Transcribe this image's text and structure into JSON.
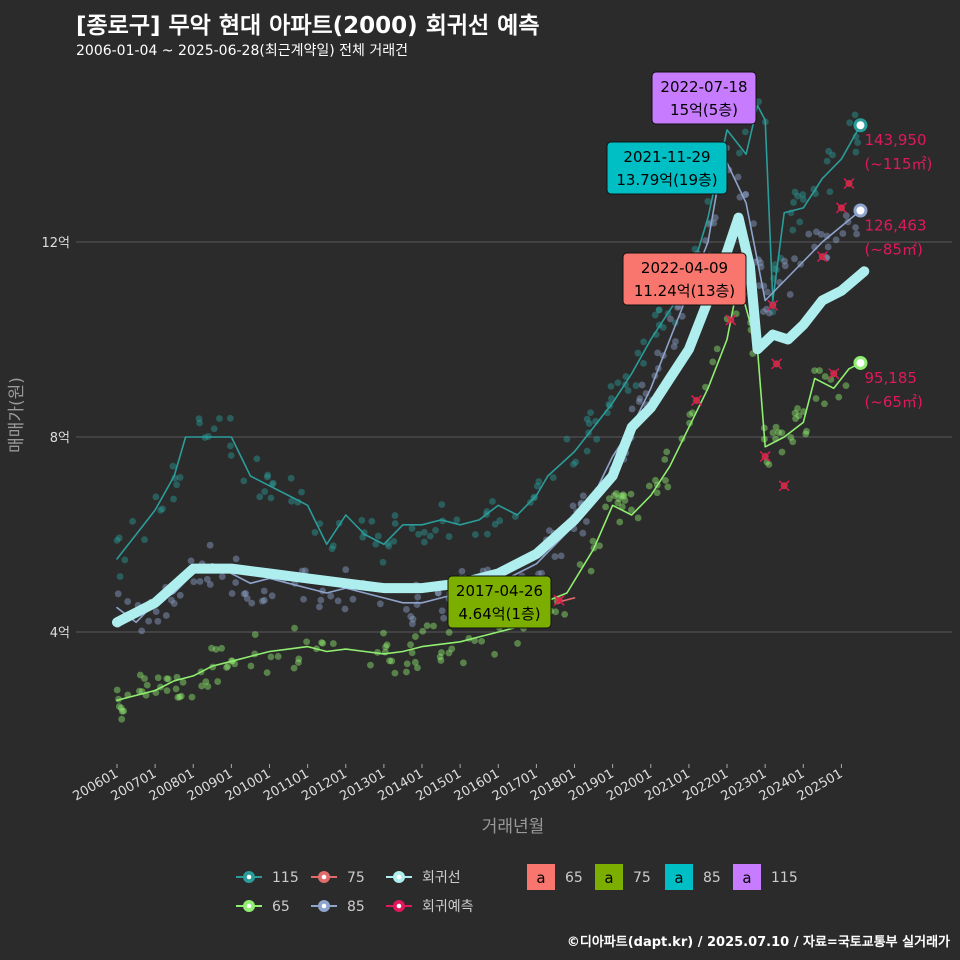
{
  "title": "[종로구] 무악 현대 아파트(2000) 회귀선 예측",
  "subtitle": "2006-01-04 ~ 2025-06-28(최근계약일) 전체 거래건",
  "footer": "©디아파트(dapt.kr) / 2025.07.10 / 자료=국토교통부 실거래가",
  "chart_data": {
    "type": "line",
    "xlabel": "거래년월",
    "ylabel": "매매가(원)",
    "x_ticks": [
      "200601",
      "200701",
      "200801",
      "200901",
      "201001",
      "201101",
      "201201",
      "201301",
      "201401",
      "201501",
      "201601",
      "201701",
      "201801",
      "201901",
      "202001",
      "202101",
      "202201",
      "202301",
      "202401",
      "202501"
    ],
    "y_ticks": [
      {
        "value": 40000,
        "label": "4억"
      },
      {
        "value": 80000,
        "label": "8억"
      },
      {
        "value": 120000,
        "label": "12억"
      }
    ],
    "xlim": [
      2005.5,
      2026.0
    ],
    "ylim": [
      15000,
      160000
    ],
    "grid": true,
    "legend_position": "bottom",
    "colors": {
      "115": "#2a9d9a",
      "85": "#8fa4cc",
      "75": "#e06c6c",
      "65": "#90ee70",
      "trend": "#aeeeee",
      "forecast": "#e0195a"
    },
    "series": [
      {
        "name": "115",
        "values": [
          [
            2006.0,
            55000
          ],
          [
            2006.5,
            60000
          ],
          [
            2007.0,
            65000
          ],
          [
            2007.5,
            72000
          ],
          [
            2007.8,
            80000
          ],
          [
            2008.3,
            80000
          ],
          [
            2009.0,
            80000
          ],
          [
            2009.5,
            72000
          ],
          [
            2010.0,
            70000
          ],
          [
            2010.5,
            68000
          ],
          [
            2011.0,
            66000
          ],
          [
            2011.5,
            58000
          ],
          [
            2012.0,
            64000
          ],
          [
            2012.5,
            60000
          ],
          [
            2013.0,
            58000
          ],
          [
            2013.5,
            62000
          ],
          [
            2014.0,
            62000
          ],
          [
            2014.5,
            63000
          ],
          [
            2015.0,
            62000
          ],
          [
            2015.5,
            63000
          ],
          [
            2016.0,
            66000
          ],
          [
            2016.5,
            64000
          ],
          [
            2017.0,
            68000
          ],
          [
            2017.3,
            72000
          ],
          [
            2018.0,
            77000
          ],
          [
            2018.5,
            82000
          ],
          [
            2019.0,
            87000
          ],
          [
            2019.5,
            93000
          ],
          [
            2020.0,
            100000
          ],
          [
            2020.5,
            106000
          ],
          [
            2021.0,
            112000
          ],
          [
            2021.5,
            125000
          ],
          [
            2022.0,
            143000
          ],
          [
            2022.5,
            138000
          ],
          [
            2022.8,
            148000
          ],
          [
            2023.0,
            145000
          ],
          [
            2023.2,
            108000
          ],
          [
            2023.5,
            126000
          ],
          [
            2024.0,
            127000
          ],
          [
            2024.5,
            133000
          ],
          [
            2025.0,
            137000
          ],
          [
            2025.5,
            143950
          ]
        ]
      },
      {
        "name": "85",
        "values": [
          [
            2006.0,
            45000
          ],
          [
            2006.5,
            42000
          ],
          [
            2007.0,
            46000
          ],
          [
            2007.5,
            48000
          ],
          [
            2008.0,
            52000
          ],
          [
            2008.5,
            54000
          ],
          [
            2009.0,
            52000
          ],
          [
            2009.5,
            50000
          ],
          [
            2010.0,
            51000
          ],
          [
            2010.5,
            50000
          ],
          [
            2011.0,
            49000
          ],
          [
            2011.5,
            48000
          ],
          [
            2012.0,
            49000
          ],
          [
            2012.5,
            48000
          ],
          [
            2013.0,
            47000
          ],
          [
            2013.5,
            46000
          ],
          [
            2014.0,
            46000
          ],
          [
            2014.5,
            47000
          ],
          [
            2015.0,
            48000
          ],
          [
            2015.5,
            49000
          ],
          [
            2016.0,
            50000
          ],
          [
            2016.5,
            52000
          ],
          [
            2017.0,
            54000
          ],
          [
            2017.5,
            58000
          ],
          [
            2018.0,
            62000
          ],
          [
            2018.5,
            68000
          ],
          [
            2019.0,
            76000
          ],
          [
            2019.5,
            82000
          ],
          [
            2020.0,
            90000
          ],
          [
            2020.5,
            100000
          ],
          [
            2021.0,
            110000
          ],
          [
            2021.5,
            120000
          ],
          [
            2021.9,
            137900
          ],
          [
            2022.5,
            128000
          ],
          [
            2023.0,
            108000
          ],
          [
            2023.5,
            112000
          ],
          [
            2024.0,
            116000
          ],
          [
            2024.5,
            120000
          ],
          [
            2025.5,
            126463
          ]
        ]
      },
      {
        "name": "75",
        "values": [
          [
            2017.5,
            46000
          ],
          [
            2018.0,
            47000
          ]
        ]
      },
      {
        "name": "65",
        "values": [
          [
            2006.0,
            26000
          ],
          [
            2006.5,
            27000
          ],
          [
            2007.0,
            28000
          ],
          [
            2007.5,
            30000
          ],
          [
            2008.0,
            31000
          ],
          [
            2008.5,
            33000
          ],
          [
            2009.0,
            34000
          ],
          [
            2009.5,
            35000
          ],
          [
            2010.0,
            36000
          ],
          [
            2010.5,
            36500
          ],
          [
            2011.0,
            37000
          ],
          [
            2011.5,
            36000
          ],
          [
            2012.0,
            36500
          ],
          [
            2012.5,
            36000
          ],
          [
            2013.0,
            35500
          ],
          [
            2013.5,
            36000
          ],
          [
            2014.0,
            37000
          ],
          [
            2014.5,
            37500
          ],
          [
            2015.0,
            38000
          ],
          [
            2015.5,
            39000
          ],
          [
            2016.0,
            40000
          ],
          [
            2016.5,
            41000
          ],
          [
            2017.0,
            43000
          ],
          [
            2017.3,
            46400
          ],
          [
            2017.8,
            48000
          ],
          [
            2018.5,
            57000
          ],
          [
            2019.0,
            66000
          ],
          [
            2019.5,
            64000
          ],
          [
            2020.0,
            68000
          ],
          [
            2020.5,
            74000
          ],
          [
            2021.0,
            82000
          ],
          [
            2021.5,
            90000
          ],
          [
            2022.0,
            100000
          ],
          [
            2022.3,
            112000
          ],
          [
            2022.8,
            98000
          ],
          [
            2023.0,
            78000
          ],
          [
            2023.5,
            80000
          ],
          [
            2024.0,
            83000
          ],
          [
            2024.3,
            92000
          ],
          [
            2024.8,
            90000
          ],
          [
            2025.2,
            94000
          ],
          [
            2025.5,
            95185
          ]
        ]
      },
      {
        "name": "회귀선",
        "values": [
          [
            2006.0,
            42000
          ],
          [
            2007.0,
            46000
          ],
          [
            2008.0,
            53000
          ],
          [
            2009.0,
            53000
          ],
          [
            2010.0,
            52000
          ],
          [
            2011.0,
            51000
          ],
          [
            2012.0,
            50000
          ],
          [
            2013.0,
            49000
          ],
          [
            2014.0,
            49000
          ],
          [
            2015.0,
            50000
          ],
          [
            2016.0,
            52000
          ],
          [
            2017.0,
            56000
          ],
          [
            2018.0,
            63000
          ],
          [
            2019.0,
            72000
          ],
          [
            2019.5,
            82000
          ],
          [
            2020.0,
            86000
          ],
          [
            2020.5,
            92000
          ],
          [
            2021.0,
            98000
          ],
          [
            2021.5,
            108000
          ],
          [
            2022.0,
            118000
          ],
          [
            2022.3,
            125000
          ],
          [
            2022.6,
            115000
          ],
          [
            2022.8,
            98000
          ],
          [
            2023.2,
            101000
          ],
          [
            2023.6,
            100000
          ],
          [
            2024.0,
            103000
          ],
          [
            2024.5,
            108000
          ],
          [
            2025.0,
            110000
          ],
          [
            2025.6,
            114000
          ]
        ]
      }
    ],
    "forecast_points": [
      [
        2017.6,
        46500
      ],
      [
        2021.2,
        87500
      ],
      [
        2022.1,
        104000
      ],
      [
        2023.0,
        76000
      ],
      [
        2023.3,
        95000
      ],
      [
        2023.5,
        70000
      ],
      [
        2023.2,
        107000
      ],
      [
        2024.5,
        117000
      ],
      [
        2025.0,
        127000
      ],
      [
        2024.8,
        93000
      ],
      [
        2025.2,
        132000
      ]
    ],
    "end_labels": [
      {
        "value": "143,950",
        "sub": "(~115㎡)"
      },
      {
        "value": "126,463",
        "sub": "(~85㎡)"
      },
      {
        "value": "95,185",
        "sub": "(~65㎡)"
      }
    ],
    "annotations": [
      {
        "date": "2022-07-18",
        "price": "15억(5층)",
        "group": "115",
        "x": 2022.54,
        "y": 150000
      },
      {
        "date": "2021-11-29",
        "price": "13.79억(19층)",
        "group": "85",
        "x": 2021.9,
        "y": 137900
      },
      {
        "date": "2022-04-09",
        "price": "11.24억(13층)",
        "group": "75",
        "x": 2022.27,
        "y": 112400
      },
      {
        "date": "2017-04-26",
        "price": "4.64억(1층)",
        "group": "65",
        "x": 2017.32,
        "y": 46400
      }
    ],
    "legend": {
      "lines": [
        "115",
        "75",
        "회귀선",
        "65",
        "85",
        "회귀예측"
      ],
      "boxes": [
        {
          "label": "65",
          "color": "#f8766d"
        },
        {
          "label": "75",
          "color": "#7cae00"
        },
        {
          "label": "85",
          "color": "#00bfc4"
        },
        {
          "label": "115",
          "color": "#c77cff"
        }
      ]
    }
  }
}
